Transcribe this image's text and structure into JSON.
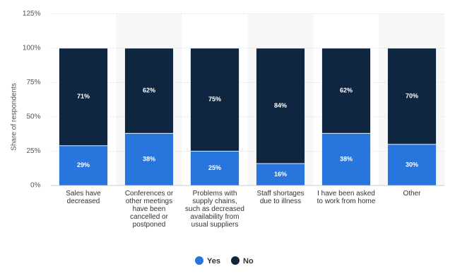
{
  "chart_data": {
    "type": "stacked-bar",
    "y_label": "Share of respondents",
    "categories": [
      "Sales have decreased",
      "Conferences or other meetings have been cancelled or postponed",
      "Problems with supply chains, such as decreased availability from usual suppliers",
      "Staff shortages due to illness",
      "I have been asked to work from home",
      "Other"
    ],
    "series": [
      {
        "name": "Yes",
        "color": "#2876dd",
        "values": [
          29,
          38,
          25,
          16,
          38,
          30
        ],
        "value_labels": [
          "29%",
          "38%",
          "25%",
          "16%",
          "38%",
          "30%"
        ]
      },
      {
        "name": "No",
        "color": "#0f2640",
        "values": [
          71,
          62,
          75,
          84,
          62,
          70
        ],
        "value_labels": [
          "71%",
          "62%",
          "75%",
          "84%",
          "62%",
          "70%"
        ]
      }
    ],
    "ylim": [
      0,
      125
    ],
    "yticks": [
      {
        "value": 0,
        "label": "0%"
      },
      {
        "value": 25,
        "label": "25%"
      },
      {
        "value": 50,
        "label": "50%"
      },
      {
        "value": 75,
        "label": "75%"
      },
      {
        "value": 100,
        "label": "100%"
      },
      {
        "value": 125,
        "label": "125%"
      }
    ],
    "grid": true
  }
}
